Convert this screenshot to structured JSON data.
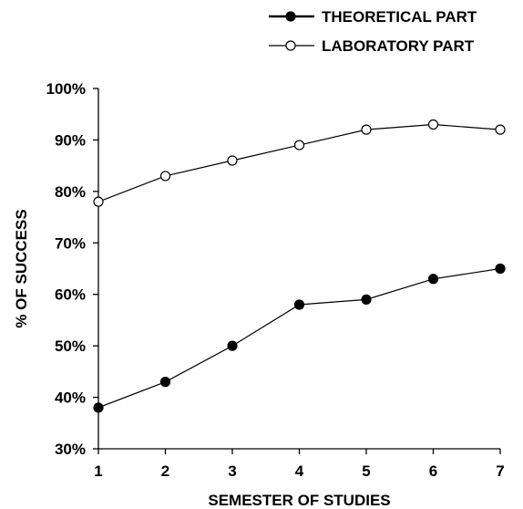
{
  "chart_data": {
    "type": "line",
    "title": "",
    "xlabel": "SEMESTER OF STUDIES",
    "ylabel": "% OF SUCCESS",
    "x": [
      1,
      2,
      3,
      4,
      5,
      6,
      7
    ],
    "x_tick_labels": [
      "1",
      "2",
      "3",
      "4",
      "5",
      "6",
      "7"
    ],
    "ylim": [
      30,
      100
    ],
    "y_ticks": [
      30,
      40,
      50,
      60,
      70,
      80,
      90,
      100
    ],
    "y_tick_labels": [
      "30%",
      "40%",
      "50%",
      "60%",
      "70%",
      "80%",
      "90%",
      "100%"
    ],
    "grid": false,
    "legend_position": "top-right",
    "series": [
      {
        "name": "THEORETICAL PART",
        "marker": "filled-circle",
        "values": [
          38,
          43,
          50,
          58,
          59,
          63,
          65
        ]
      },
      {
        "name": "LABORATORY PART",
        "marker": "open-circle",
        "values": [
          78,
          83,
          86,
          89,
          92,
          93,
          92
        ]
      }
    ]
  }
}
